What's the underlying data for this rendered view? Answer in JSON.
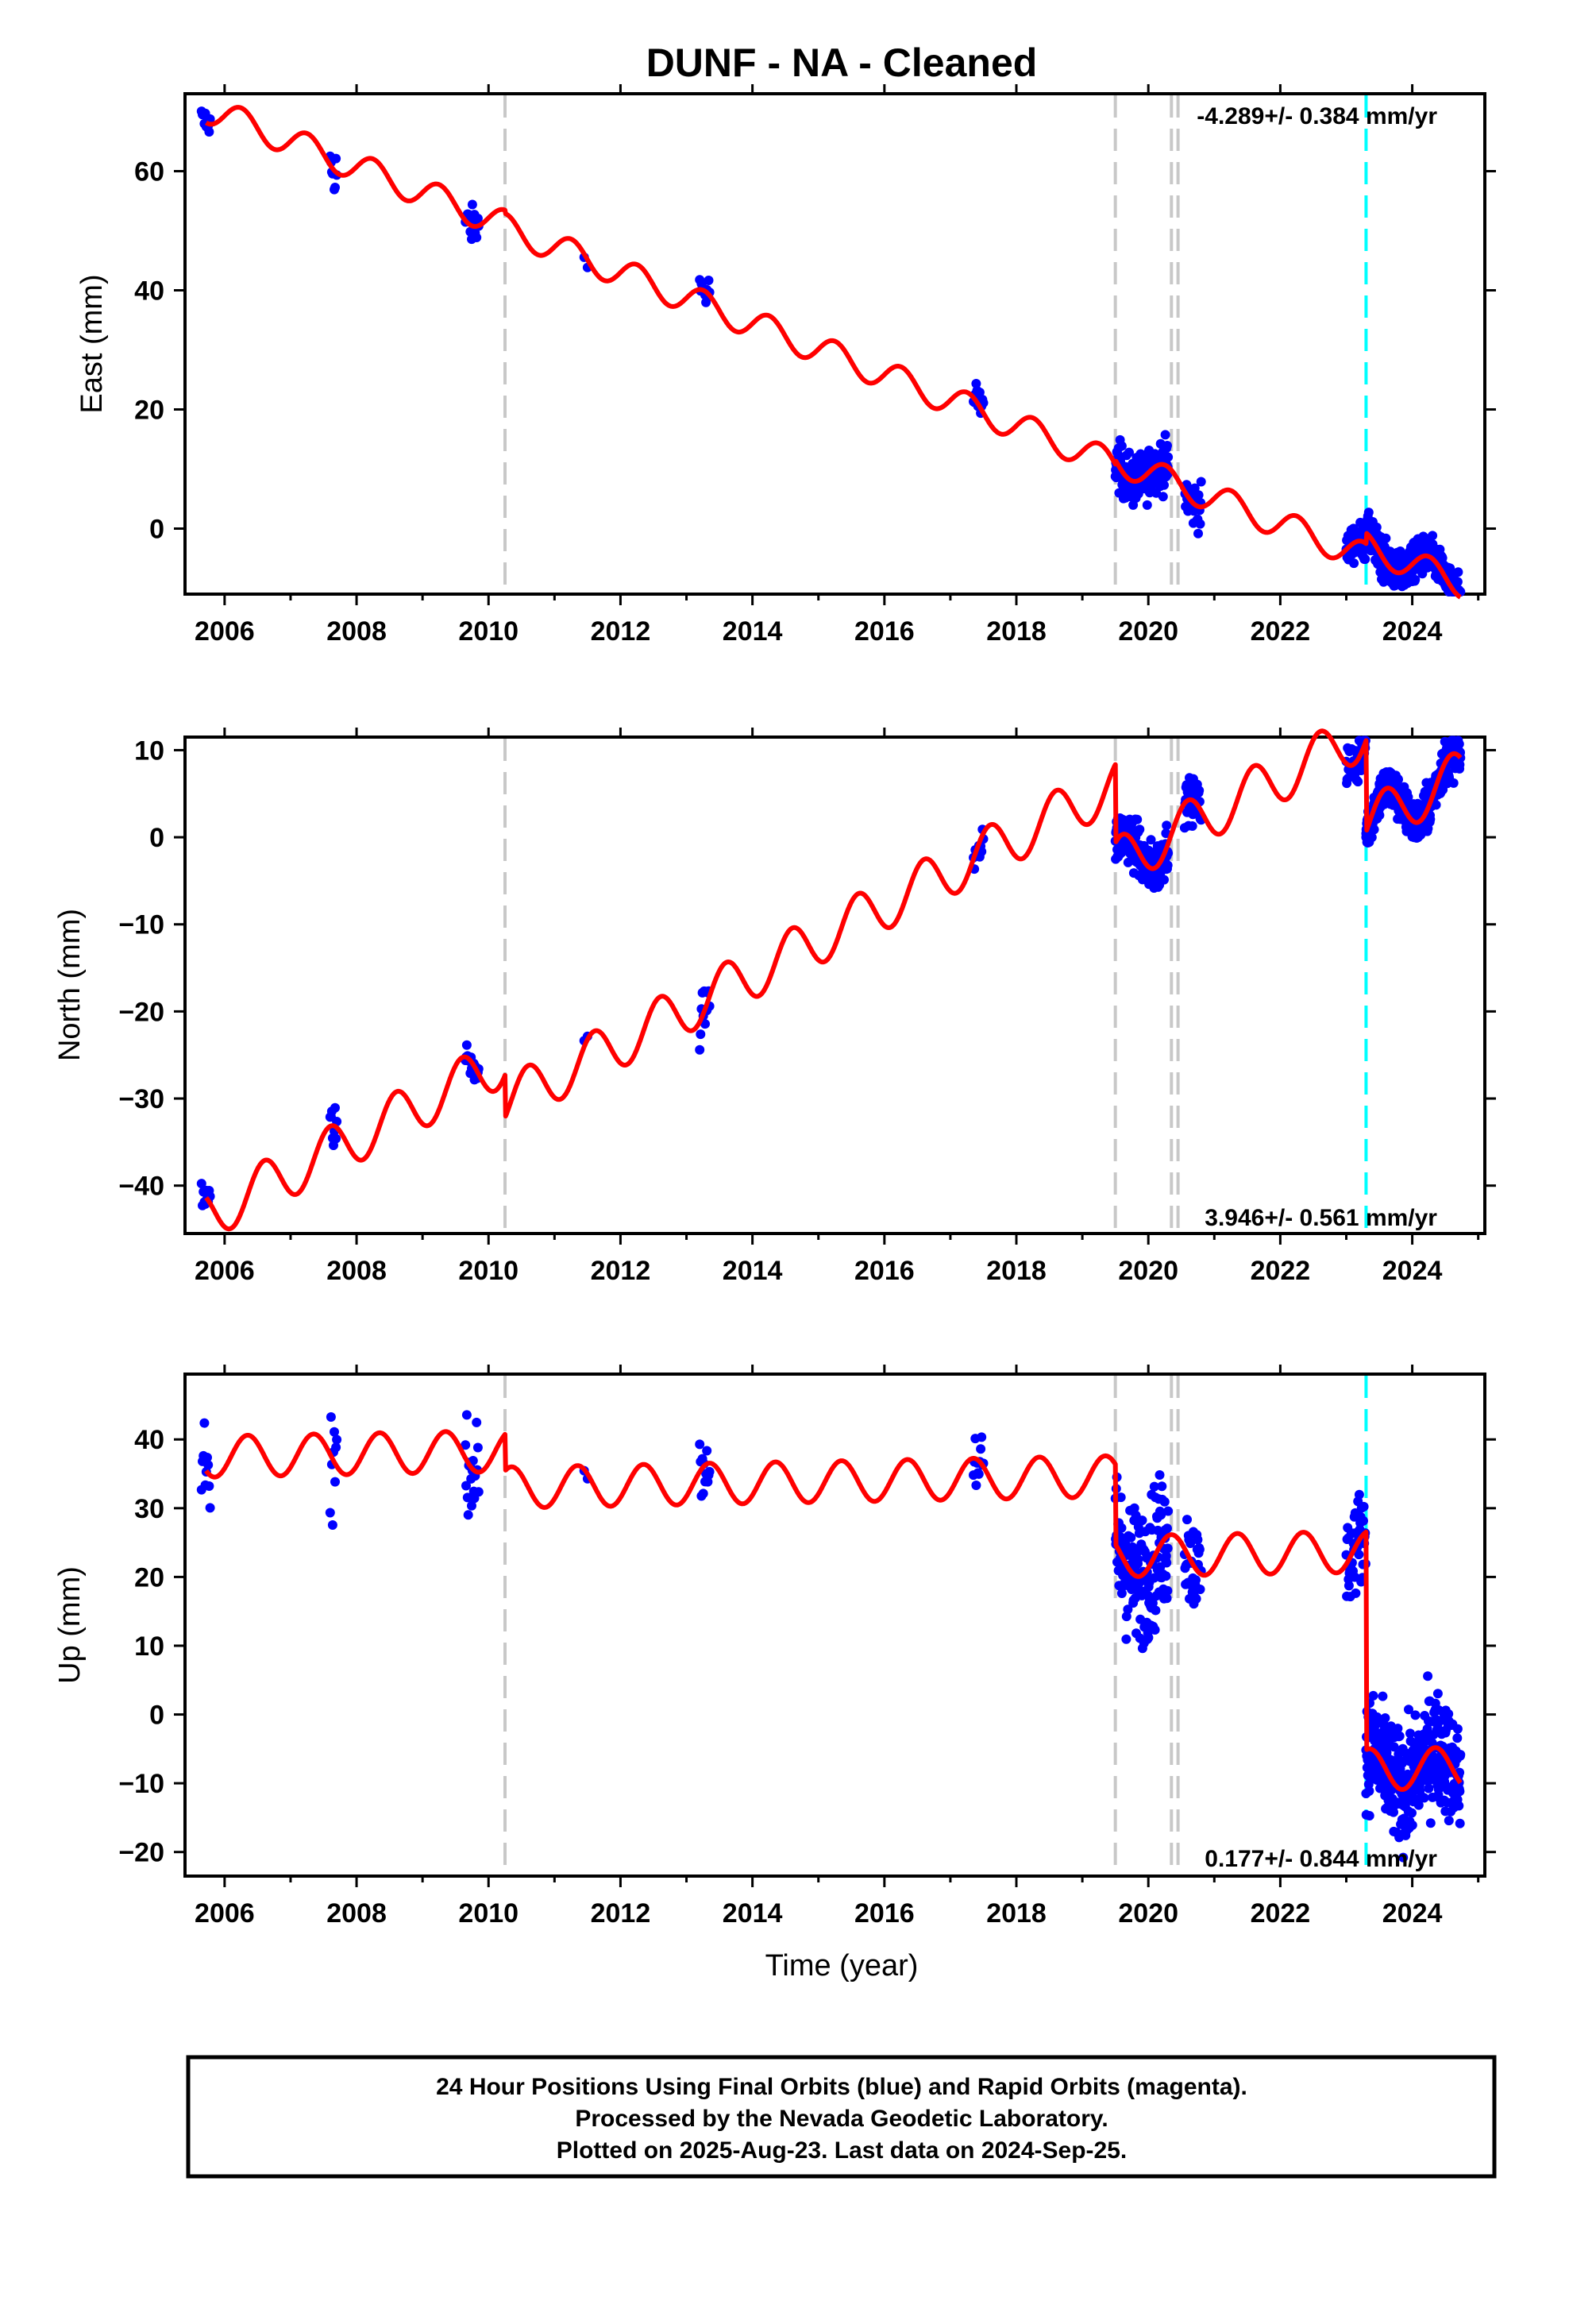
{
  "title": "DUNF  - NA - Cleaned",
  "colors": {
    "final_points": "#0000ff",
    "model": "#ff0000",
    "equipment_change": "#c8c8c8",
    "earthquake": "#00ffff",
    "frame": "#000000"
  },
  "footer": {
    "line1": "24 Hour Positions Using Final Orbits (blue) and Rapid Orbits (magenta).",
    "line2": "Processed by the Nevada Geodetic Laboratory.",
    "line3": "Plotted on 2025-Aug-23. Last data on 2024-Sep-25."
  },
  "chart_data": [
    {
      "type": "scatter",
      "component": "east",
      "ylabel": "East (mm)",
      "xlabel": "",
      "rate_label": "-4.289+/- 0.384 mm/yr",
      "xlim": [
        2005.4,
        2025.1
      ],
      "ylim": [
        -11,
        73
      ],
      "xticks": [
        2006,
        2008,
        2010,
        2012,
        2014,
        2016,
        2018,
        2020,
        2022,
        2024
      ],
      "yticks": [
        0,
        20,
        40,
        60
      ],
      "equipment_changes": [
        2010.25,
        2019.5,
        2020.35,
        2020.45
      ],
      "earthquakes": [
        2023.3
      ],
      "model": {
        "pieces": [
          {
            "x0": 2005.72,
            "x1": 2010.25,
            "ref": 2005.72,
            "y0": 70.5
          },
          {
            "x0": 2010.25,
            "x1": 2019.5,
            "ref": 2010.25,
            "y0": 50.5
          },
          {
            "x0": 2019.5,
            "x1": 2023.3,
            "ref": 2019.5,
            "y0": 11.5
          },
          {
            "x0": 2023.3,
            "x1": 2024.73,
            "ref": 2023.3,
            "y0": -3.0
          }
        ],
        "slope": -4.289,
        "amp": 2.4,
        "phase": 0.0
      },
      "data_segments": [
        {
          "x0": 2005.65,
          "x1": 2005.78,
          "n": 10,
          "scatter": 1.2
        },
        {
          "x0": 2007.6,
          "x1": 2007.7,
          "n": 9,
          "scatter": 2.0
        },
        {
          "x0": 2009.65,
          "x1": 2009.85,
          "n": 20,
          "scatter": 1.6
        },
        {
          "x0": 2011.45,
          "x1": 2011.5,
          "n": 2,
          "scatter": 0.5
        },
        {
          "x0": 2013.2,
          "x1": 2013.35,
          "n": 12,
          "scatter": 1.8
        },
        {
          "x0": 2017.35,
          "x1": 2017.5,
          "n": 12,
          "scatter": 1.8
        },
        {
          "x0": 2019.5,
          "x1": 2020.3,
          "n": 170,
          "scatter": 2.1
        },
        {
          "x0": 2020.55,
          "x1": 2020.8,
          "n": 35,
          "scatter": 2.0
        },
        {
          "x0": 2023.0,
          "x1": 2023.3,
          "n": 45,
          "scatter": 1.6
        },
        {
          "x0": 2023.3,
          "x1": 2024.73,
          "n": 420,
          "scatter": 1.6
        }
      ]
    },
    {
      "type": "scatter",
      "component": "north",
      "ylabel": "North (mm)",
      "xlabel": "",
      "rate_label": "3.946+/- 0.561 mm/yr",
      "xlim": [
        2005.4,
        2025.1
      ],
      "ylim": [
        -45.5,
        11.5
      ],
      "xticks": [
        2006,
        2008,
        2010,
        2012,
        2014,
        2016,
        2018,
        2020,
        2022,
        2024
      ],
      "yticks": [
        -40,
        -30,
        -20,
        -10,
        0,
        10
      ],
      "equipment_changes": [
        2010.25,
        2019.5,
        2020.35,
        2020.45
      ],
      "earthquakes": [
        2023.3
      ],
      "model": {
        "pieces": [
          {
            "x0": 2005.72,
            "x1": 2010.25,
            "ref": 2005.72,
            "y0": -43.5
          },
          {
            "x0": 2010.25,
            "x1": 2019.5,
            "ref": 2010.25,
            "y0": -30.5
          },
          {
            "x0": 2019.5,
            "x1": 2023.3,
            "ref": 2019.5,
            "y0": -3.0
          },
          {
            "x0": 2023.3,
            "x1": 2024.73,
            "ref": 2023.3,
            "y0": 1.5
          }
        ],
        "slope": 3.946,
        "amp": 2.9,
        "phase": 0.35
      },
      "data_segments": [
        {
          "x0": 2005.65,
          "x1": 2005.78,
          "n": 10,
          "scatter": 1.0
        },
        {
          "x0": 2007.6,
          "x1": 2007.7,
          "n": 9,
          "scatter": 1.2
        },
        {
          "x0": 2009.65,
          "x1": 2009.85,
          "n": 20,
          "scatter": 0.9
        },
        {
          "x0": 2011.45,
          "x1": 2011.5,
          "n": 2,
          "scatter": 0.5
        },
        {
          "x0": 2013.2,
          "x1": 2013.35,
          "n": 12,
          "scatter": 1.4
        },
        {
          "x0": 2017.35,
          "x1": 2017.5,
          "n": 12,
          "scatter": 1.2
        },
        {
          "x0": 2019.5,
          "x1": 2020.3,
          "n": 170,
          "scatter": 1.5
        },
        {
          "x0": 2020.55,
          "x1": 2020.8,
          "n": 35,
          "scatter": 1.2
        },
        {
          "x0": 2023.0,
          "x1": 2023.3,
          "n": 45,
          "scatter": 1.4
        },
        {
          "x0": 2023.3,
          "x1": 2024.73,
          "n": 420,
          "scatter": 1.3
        }
      ]
    },
    {
      "type": "scatter",
      "component": "up",
      "ylabel": "Up (mm)",
      "xlabel": "Time (year)",
      "rate_label": "0.177+/- 0.844 mm/yr",
      "xlim": [
        2005.4,
        2025.1
      ],
      "ylim": [
        -23.5,
        49.5
      ],
      "xticks": [
        2006,
        2008,
        2010,
        2012,
        2014,
        2016,
        2018,
        2020,
        2022,
        2024
      ],
      "yticks": [
        -20,
        -10,
        0,
        10,
        20,
        30,
        40
      ],
      "equipment_changes": [
        2010.25,
        2019.5,
        2020.35,
        2020.45
      ],
      "earthquakes": [
        2023.3
      ],
      "model": {
        "pieces": [
          {
            "x0": 2005.72,
            "x1": 2010.25,
            "ref": 2005.72,
            "y0": 37.5
          },
          {
            "x0": 2010.25,
            "x1": 2019.5,
            "ref": 2010.25,
            "y0": 33.0
          },
          {
            "x0": 2019.5,
            "x1": 2023.3,
            "ref": 2019.5,
            "y0": 23.0
          },
          {
            "x0": 2023.3,
            "x1": 2024.73,
            "ref": 2023.3,
            "y0": -8.0
          }
        ],
        "slope": 0.177,
        "amp": 3.0,
        "phase": 0.1
      },
      "data_segments": [
        {
          "x0": 2005.65,
          "x1": 2005.78,
          "n": 10,
          "scatter": 3.5
        },
        {
          "x0": 2007.6,
          "x1": 2007.7,
          "n": 9,
          "scatter": 4.5
        },
        {
          "x0": 2009.65,
          "x1": 2009.85,
          "n": 20,
          "scatter": 3.0
        },
        {
          "x0": 2011.45,
          "x1": 2011.5,
          "n": 2,
          "scatter": 0.5
        },
        {
          "x0": 2013.2,
          "x1": 2013.35,
          "n": 12,
          "scatter": 3.5
        },
        {
          "x0": 2017.35,
          "x1": 2017.5,
          "n": 12,
          "scatter": 3.0
        },
        {
          "x0": 2019.5,
          "x1": 2020.3,
          "n": 170,
          "scatter": 5.0
        },
        {
          "x0": 2020.55,
          "x1": 2020.8,
          "n": 35,
          "scatter": 3.5
        },
        {
          "x0": 2023.0,
          "x1": 2023.3,
          "n": 45,
          "scatter": 3.5
        },
        {
          "x0": 2023.3,
          "x1": 2024.73,
          "n": 420,
          "scatter": 4.0
        }
      ]
    }
  ]
}
